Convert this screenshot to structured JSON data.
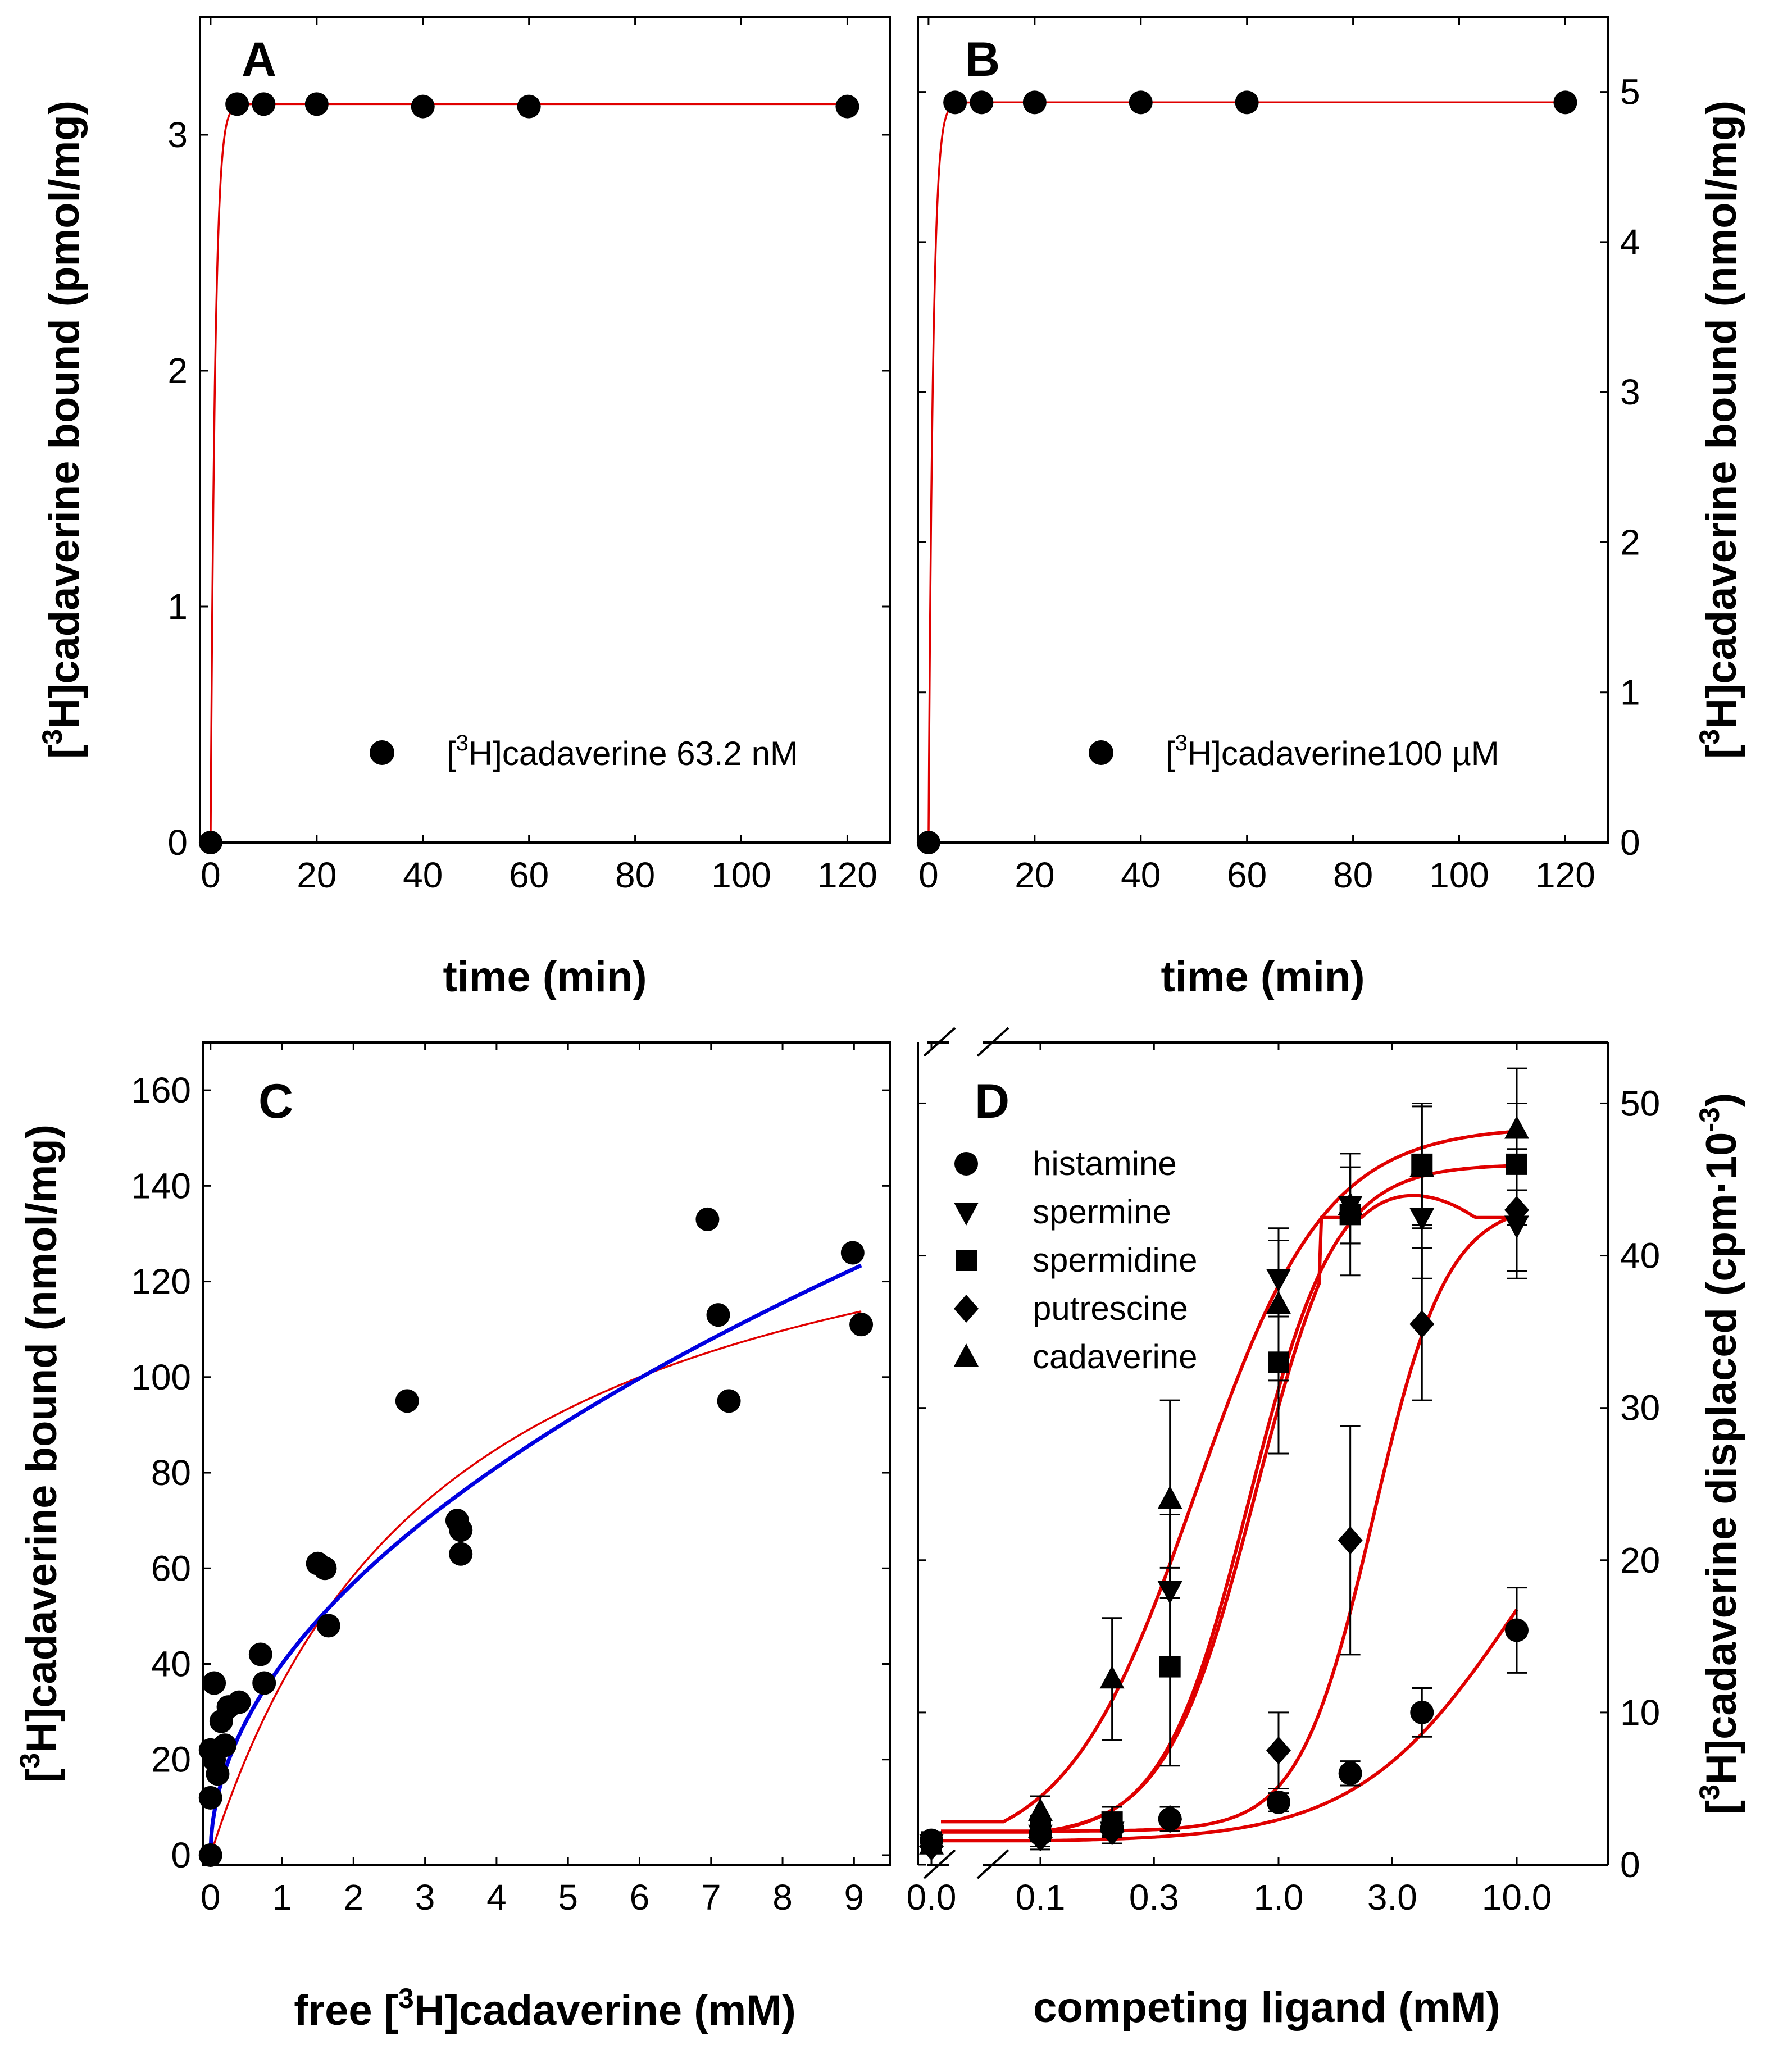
{
  "colors": {
    "fit_red": "#e00000",
    "fit_blue": "#0000e0",
    "marker": "#000000"
  },
  "chart_data": [
    {
      "id": "A",
      "type": "scatter",
      "letter": "A",
      "xlabel": "time (min)",
      "ylabel": {
        "pre": "[",
        "sup": "3",
        "post": "H]cadaverine bound (pmol/mg)"
      },
      "xlim": [
        -2,
        128
      ],
      "ylim": [
        0,
        3.5
      ],
      "xticks": [
        0,
        20,
        40,
        60,
        80,
        100,
        120
      ],
      "yticks": [
        0,
        1,
        2,
        3
      ],
      "series": [
        {
          "name": "[3H]cadaverine 63.2 nM",
          "marker": "circle",
          "x": [
            0,
            5,
            10,
            20,
            40,
            60,
            120
          ],
          "y": [
            0,
            3.13,
            3.13,
            3.13,
            3.12,
            3.12,
            3.12
          ]
        }
      ],
      "fit": {
        "color": "red",
        "plateau": 3.13,
        "k": 1.2
      },
      "legend": {
        "pre": "[",
        "sup": "3",
        "post": "H]cadaverine 63.2 nM"
      }
    },
    {
      "id": "B",
      "type": "scatter",
      "letter": "B",
      "xlabel": "time (min)",
      "ylabel": {
        "pre": "[",
        "sup": "3",
        "post": "H]cadaverine bound (nmol/mg)"
      },
      "xlim": [
        -2,
        128
      ],
      "ylim": [
        0,
        5.5
      ],
      "xticks": [
        0,
        20,
        40,
        60,
        80,
        100,
        120
      ],
      "yticks": [
        0,
        1,
        2,
        3,
        4,
        5
      ],
      "series": [
        {
          "name": "[3H]cadaverine100 µM",
          "marker": "circle",
          "x": [
            0,
            5,
            10,
            20,
            40,
            60,
            120
          ],
          "y": [
            0,
            4.93,
            4.93,
            4.93,
            4.93,
            4.93,
            4.93
          ]
        }
      ],
      "fit": {
        "color": "red",
        "plateau": 4.93,
        "k": 1.2
      },
      "legend": {
        "pre": "[",
        "sup": "3",
        "post": "H]cadaverine100 µM"
      }
    },
    {
      "id": "C",
      "type": "scatter",
      "letter": "C",
      "xlabel": {
        "pre": "free [",
        "sup": "3",
        "post": "H]cadaverine (mM)"
      },
      "ylabel": {
        "pre": "[",
        "sup": "3",
        "post": "H]cadaverine bound (nmol/mg)"
      },
      "xlim": [
        -0.1,
        9.5
      ],
      "ylim": [
        -2,
        170
      ],
      "xticks": [
        0,
        1,
        2,
        3,
        4,
        5,
        6,
        7,
        8,
        9
      ],
      "yticks": [
        0,
        20,
        40,
        60,
        80,
        100,
        120,
        140,
        160
      ],
      "series": [
        {
          "name": "binding",
          "marker": "circle",
          "x": [
            0,
            0,
            0,
            0.05,
            0.05,
            0.1,
            0.15,
            0.2,
            0.25,
            0.4,
            0.7,
            0.75,
            1.5,
            1.6,
            1.65,
            2.75,
            3.45,
            3.5,
            3.5,
            6.95,
            7.1,
            7.25,
            8.98,
            9.1
          ],
          "y": [
            0,
            12,
            22,
            20,
            36,
            17,
            28,
            23,
            31,
            32,
            42,
            36,
            61,
            60,
            48,
            95,
            70,
            68,
            63,
            133,
            113,
            95,
            126,
            111
          ]
        }
      ],
      "fit_red": {
        "type": "hyperbolic",
        "bmax": 155,
        "kd": 3.3
      },
      "fit_blue": {
        "type": "power",
        "a": 40,
        "b": 0.51,
        "xmax": 9.1
      }
    },
    {
      "id": "D",
      "type": "scatter",
      "letter": "D",
      "xlabel": "competing ligand (mM)",
      "ylabel": {
        "pre": "[",
        "sup": "3",
        "post": "H]cadaverine displaced (cpm·10",
        "sup2": "-3",
        "post2": ")"
      },
      "xscale": "log",
      "xtick_labels": [
        "0.0",
        "0.1",
        "0.3",
        "1.0",
        "3.0",
        "10.0"
      ],
      "xtick_values": [
        0,
        0.1,
        0.3,
        1,
        3,
        10
      ],
      "yticks": [
        0,
        10,
        20,
        30,
        40,
        50
      ],
      "ylim": [
        0,
        54
      ],
      "series": [
        {
          "name": "histamine",
          "marker": "circle",
          "x": [
            0,
            0.1,
            0.2,
            0.35,
            1,
            2,
            4,
            10
          ],
          "y": [
            1.6,
            2.0,
            2.4,
            3.0,
            4.1,
            6.0,
            10.0,
            15.4
          ],
          "err": [
            0.5,
            0.8,
            0.5,
            0.8,
            0.6,
            0.8,
            1.6,
            2.8
          ]
        },
        {
          "name": "spermine",
          "marker": "triangle-down",
          "x": [
            0,
            0.1,
            0.2,
            0.35,
            1,
            2,
            4,
            10
          ],
          "y": [
            1.4,
            2.0,
            2.2,
            18.0,
            38.5,
            43.3,
            42.5,
            42.0
          ],
          "err": [
            0.5,
            1.0,
            0.8,
            5.0,
            2.5,
            2.5,
            4.0,
            3.5
          ]
        },
        {
          "name": "spermidine",
          "marker": "square",
          "x": [
            0,
            0.1,
            0.2,
            0.35,
            1,
            2,
            4,
            10
          ],
          "y": [
            1.5,
            2.2,
            2.8,
            13.0,
            33.0,
            42.7,
            46.0,
            46.0
          ],
          "err": [
            0.5,
            1.0,
            1.0,
            6.5,
            6.0,
            4.0,
            4.0,
            4.0
          ]
        },
        {
          "name": "putrescine",
          "marker": "diamond",
          "x": [
            0,
            0.1,
            0.2,
            0.35,
            1,
            2,
            4,
            10
          ],
          "y": [
            1.2,
            1.8,
            2.2,
            3.0,
            7.5,
            21.3,
            35.5,
            43.0
          ],
          "err": [
            0.4,
            0.6,
            0.4,
            0.8,
            2.5,
            7.5,
            5.0,
            4.0
          ]
        },
        {
          "name": "cadaverine",
          "marker": "triangle-up",
          "x": [
            0,
            0.1,
            0.2,
            0.35,
            1,
            2,
            4,
            10
          ],
          "y": [
            1.3,
            3.5,
            12.2,
            24.0,
            36.8,
            43.3,
            45.8,
            48.3
          ],
          "err": [
            0.5,
            1.0,
            4.0,
            6.5,
            5.0,
            2.5,
            4.0,
            4.0
          ]
        }
      ],
      "legend": [
        "histamine",
        "spermine",
        "spermidine",
        "putrescine",
        "cadaverine"
      ]
    }
  ]
}
